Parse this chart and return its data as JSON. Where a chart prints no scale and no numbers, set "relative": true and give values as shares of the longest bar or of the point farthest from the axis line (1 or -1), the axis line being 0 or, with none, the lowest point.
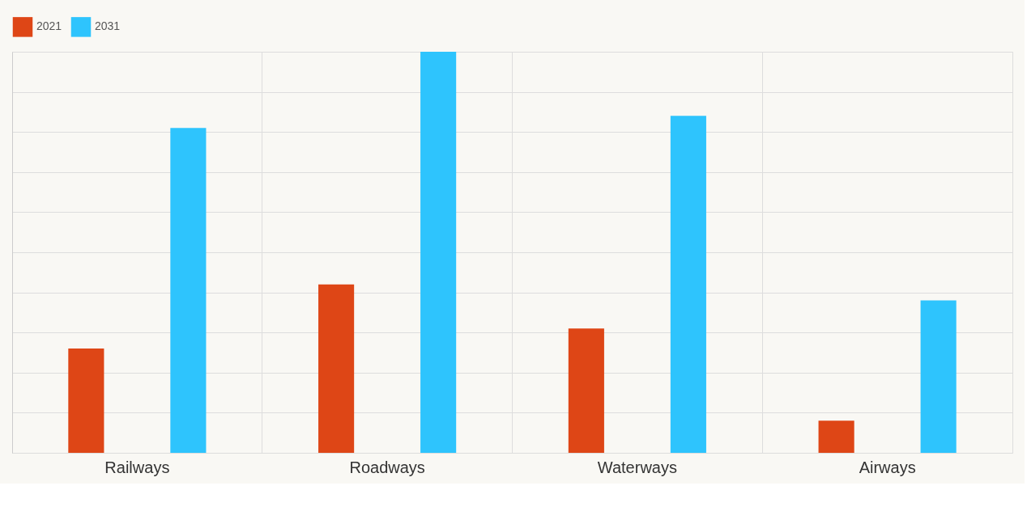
{
  "chart_data": {
    "type": "bar",
    "categories": [
      "Railways",
      "Roadways",
      "Waterways",
      "Airways"
    ],
    "relative": true,
    "grid": true,
    "legend": "top",
    "series": [
      {
        "name": "2021",
        "color": "#de4616",
        "values": [
          0.26,
          0.42,
          0.31,
          0.08
        ]
      },
      {
        "name": "2031",
        "color": "#2ec4fd",
        "values": [
          0.81,
          1,
          0.84,
          0.38
        ]
      }
    ]
  }
}
